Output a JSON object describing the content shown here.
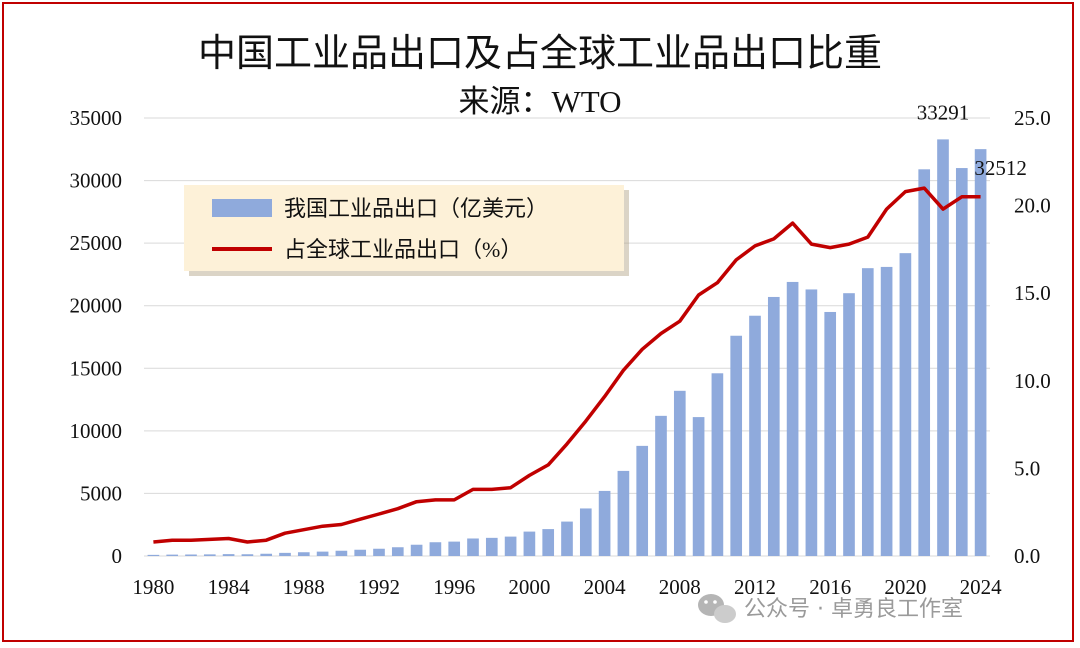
{
  "chart_data": {
    "type": "bar+line",
    "title": "中国工业品出口及占全球工业品出口比重",
    "subtitle": "来源：WTO",
    "x": [
      1980,
      1981,
      1982,
      1983,
      1984,
      1985,
      1986,
      1987,
      1988,
      1989,
      1990,
      1991,
      1992,
      1993,
      1994,
      1995,
      1996,
      1997,
      1998,
      1999,
      2000,
      2001,
      2002,
      2003,
      2004,
      2005,
      2006,
      2007,
      2008,
      2009,
      2010,
      2011,
      2012,
      2013,
      2014,
      2015,
      2016,
      2017,
      2018,
      2019,
      2020,
      2021,
      2022,
      2023,
      2024
    ],
    "x_tick_labels": [
      "1980",
      "1984",
      "1988",
      "1992",
      "1996",
      "2000",
      "2004",
      "2008",
      "2012",
      "2016",
      "2020",
      "2024"
    ],
    "y_left": {
      "ylim": [
        0,
        35000
      ],
      "ticks": [
        "0",
        "5000",
        "10000",
        "15000",
        "20000",
        "25000",
        "30000",
        "35000"
      ]
    },
    "y_right": {
      "ylim": [
        0,
        25
      ],
      "ticks": [
        "0.0",
        "5.0",
        "10.0",
        "15.0",
        "20.0",
        "25.0"
      ]
    },
    "series": [
      {
        "name": "我国工业品出口（亿美元）",
        "type": "bar",
        "axis": "left",
        "color": "#8faadc",
        "values": [
          90,
          110,
          120,
          130,
          150,
          140,
          180,
          250,
          300,
          350,
          420,
          500,
          580,
          700,
          900,
          1100,
          1150,
          1400,
          1450,
          1550,
          1950,
          2150,
          2750,
          3800,
          5200,
          6800,
          8800,
          11200,
          13200,
          11100,
          14600,
          17600,
          19200,
          20700,
          21900,
          21300,
          19500,
          21000,
          23000,
          23100,
          24200,
          30900,
          33291,
          31000,
          32512
        ]
      },
      {
        "name": "占全球工业品出口（%）",
        "type": "line",
        "axis": "right",
        "color": "#c00000",
        "values": [
          0.8,
          0.9,
          0.9,
          0.95,
          1.0,
          0.8,
          0.9,
          1.3,
          1.5,
          1.7,
          1.8,
          2.1,
          2.4,
          2.7,
          3.1,
          3.2,
          3.2,
          3.8,
          3.8,
          3.9,
          4.6,
          5.2,
          6.4,
          7.7,
          9.1,
          10.6,
          11.8,
          12.7,
          13.4,
          14.9,
          15.6,
          16.9,
          17.7,
          18.1,
          19.0,
          17.8,
          17.6,
          17.8,
          18.2,
          19.8,
          20.8,
          21.0,
          19.8,
          20.5,
          20.5
        ]
      }
    ],
    "data_labels": [
      {
        "text": "33291",
        "x": 2022,
        "series": 0
      },
      {
        "text": "32512",
        "x": 2024,
        "series": 0
      }
    ],
    "legend_position": "top-left",
    "grid": "horizontal"
  },
  "watermark": "公众号 · 卓勇良工作室"
}
